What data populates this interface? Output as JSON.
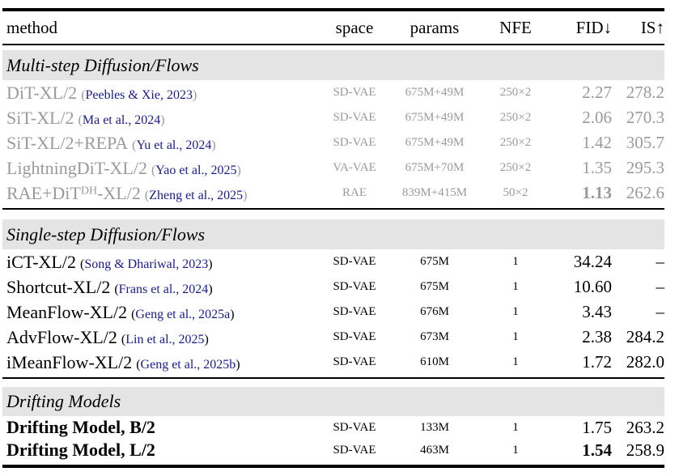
{
  "punct": {
    "open": "(",
    "close": ")"
  },
  "colors": {
    "text": "#000000",
    "muted_text": "#9a9a9a",
    "citation": "#1a1a8f",
    "section_band_bg": "#e4e4e4"
  },
  "table": {
    "columns": [
      {
        "label": "method"
      },
      {
        "label": "space"
      },
      {
        "label": "params"
      },
      {
        "label": "NFE"
      },
      {
        "label": "FID↓"
      },
      {
        "label": "IS↑"
      }
    ],
    "sections": [
      {
        "title": "Multi-step Diffusion/Flows",
        "rows": [
          {
            "method": "DiT-XL/2",
            "cite": "Peebles & Xie, 2023",
            "space": "SD-VAE",
            "params": "675M+49M",
            "nfe": "250×2",
            "fid": "2.27",
            "is": "278.2"
          },
          {
            "method": "SiT-XL/2",
            "cite": "Ma et al., 2024",
            "space": "SD-VAE",
            "params": "675M+49M",
            "nfe": "250×2",
            "fid": "2.06",
            "is": "270.3"
          },
          {
            "method": "SiT-XL/2+REPA",
            "cite": "Yu et al., 2024",
            "space": "SD-VAE",
            "params": "675M+49M",
            "nfe": "250×2",
            "fid": "1.42",
            "is": "305.7"
          },
          {
            "method": "LightningDiT-XL/2",
            "cite": "Yao et al., 2025",
            "space": "VA-VAE",
            "params": "675M+70M",
            "nfe": "250×2",
            "fid": "1.35",
            "is": "295.3"
          },
          {
            "method": "RAE+DiT",
            "method_sup": "DH",
            "method_tail": "-XL/2",
            "cite": "Zheng et al., 2025",
            "space": "RAE",
            "params": "839M+415M",
            "nfe": "50×2",
            "fid": "1.13",
            "is": "262.6"
          }
        ]
      },
      {
        "title": "Single-step Diffusion/Flows",
        "rows": [
          {
            "method": "iCT-XL/2",
            "cite": "Song & Dhariwal, 2023",
            "space": "SD-VAE",
            "params": "675M",
            "nfe": "1",
            "fid": "34.24",
            "is": "–"
          },
          {
            "method": "Shortcut-XL/2",
            "cite": "Frans et al., 2024",
            "space": "SD-VAE",
            "params": "675M",
            "nfe": "1",
            "fid": "10.60",
            "is": "–"
          },
          {
            "method": "MeanFlow-XL/2",
            "cite": "Geng et al., 2025a",
            "space": "SD-VAE",
            "params": "676M",
            "nfe": "1",
            "fid": "3.43",
            "is": "–"
          },
          {
            "method": "AdvFlow-XL/2",
            "cite": "Lin et al., 2025",
            "space": "SD-VAE",
            "params": "673M",
            "nfe": "1",
            "fid": "2.38",
            "is": "284.2"
          },
          {
            "method": "iMeanFlow-XL/2",
            "cite": "Geng et al., 2025b",
            "space": "SD-VAE",
            "params": "610M",
            "nfe": "1",
            "fid": "1.72",
            "is": "282.0"
          }
        ]
      },
      {
        "title": "Drifting Models",
        "rows": [
          {
            "method": "Drifting Model, B/2",
            "space": "SD-VAE",
            "params": "133M",
            "nfe": "1",
            "fid": "1.75",
            "is": "263.2"
          },
          {
            "method": "Drifting Model, L/2",
            "space": "SD-VAE",
            "params": "463M",
            "nfe": "1",
            "fid": "1.54",
            "is": "258.9"
          }
        ]
      }
    ]
  }
}
